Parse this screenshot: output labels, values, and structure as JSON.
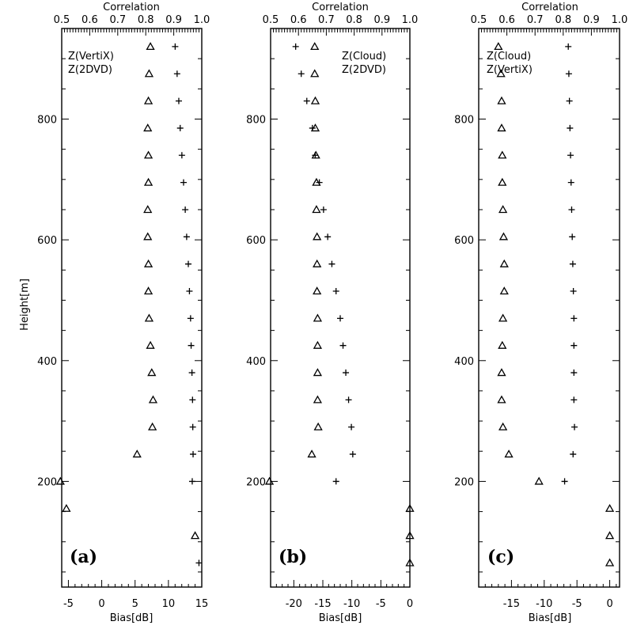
{
  "chart_data": [
    {
      "type": "scatter",
      "panel_label": "(a)",
      "xlabel": "Bias[dB]",
      "x2label": "Correlation",
      "ylabel": "Height[m]",
      "xlim": [
        -6,
        15
      ],
      "x2lim": [
        0.5,
        1.0
      ],
      "ylim": [
        25,
        950
      ],
      "xticks": [
        -5,
        0,
        5,
        10,
        15
      ],
      "xtick_labels": [
        "-5",
        "0",
        "5",
        "10",
        "15"
      ],
      "x2ticks": [
        0.5,
        0.6,
        0.7,
        0.8,
        0.9,
        1.0
      ],
      "x2tick_labels": [
        "0.5",
        "0.6",
        "0.7",
        "0.8",
        "0.9",
        "1.0"
      ],
      "yticks": [
        200,
        400,
        600,
        800
      ],
      "ytick_labels": [
        "200",
        "400",
        "600",
        "800"
      ],
      "legend": [
        "Z(VertiX)",
        "Z(2DVD)"
      ],
      "series": [
        {
          "marker": "triangle",
          "axis": "bias",
          "points": [
            [
              7.3,
              920
            ],
            [
              7.1,
              875
            ],
            [
              7.0,
              830
            ],
            [
              6.9,
              785
            ],
            [
              7.0,
              740
            ],
            [
              7.0,
              695
            ],
            [
              6.9,
              650
            ],
            [
              6.9,
              605
            ],
            [
              7.0,
              560
            ],
            [
              7.0,
              515
            ],
            [
              7.1,
              470
            ],
            [
              7.3,
              425
            ],
            [
              7.5,
              380
            ],
            [
              7.7,
              335
            ],
            [
              7.6,
              290
            ],
            [
              5.3,
              245
            ],
            [
              -6.2,
              200
            ],
            [
              -5.3,
              155
            ],
            [
              14.0,
              110
            ]
          ]
        },
        {
          "marker": "plus",
          "axis": "correlation",
          "points": [
            [
              0.905,
              920
            ],
            [
              0.912,
              875
            ],
            [
              0.918,
              830
            ],
            [
              0.923,
              785
            ],
            [
              0.929,
              740
            ],
            [
              0.935,
              695
            ],
            [
              0.941,
              650
            ],
            [
              0.946,
              605
            ],
            [
              0.952,
              560
            ],
            [
              0.956,
              515
            ],
            [
              0.96,
              470
            ],
            [
              0.962,
              425
            ],
            [
              0.965,
              380
            ],
            [
              0.967,
              335
            ],
            [
              0.968,
              290
            ],
            [
              0.969,
              245
            ],
            [
              0.966,
              200
            ],
            [
              0.99,
              65
            ]
          ]
        }
      ]
    },
    {
      "type": "scatter",
      "panel_label": "(b)",
      "xlabel": "Bias[dB]",
      "x2label": "Correlation",
      "ylabel": "",
      "xlim": [
        -24,
        0
      ],
      "x2lim": [
        0.5,
        1.0
      ],
      "ylim": [
        25,
        950
      ],
      "xticks": [
        -20,
        -15,
        -10,
        -5,
        0
      ],
      "xtick_labels": [
        "-20",
        "-15",
        "-10",
        "-5",
        "0"
      ],
      "x2ticks": [
        0.5,
        0.6,
        0.7,
        0.8,
        0.9,
        1.0
      ],
      "x2tick_labels": [
        "0.5",
        "0.6",
        "0.7",
        "0.8",
        "0.9",
        "1.0"
      ],
      "yticks": [
        200,
        400,
        600,
        800
      ],
      "ytick_labels": [
        "200",
        "400",
        "600",
        "800"
      ],
      "legend": [
        "Z(Cloud)",
        "Z(2DVD)"
      ],
      "series": [
        {
          "marker": "triangle",
          "axis": "bias",
          "points": [
            [
              -16.4,
              920
            ],
            [
              -16.4,
              875
            ],
            [
              -16.3,
              830
            ],
            [
              -16.3,
              785
            ],
            [
              -16.2,
              740
            ],
            [
              -16.1,
              695
            ],
            [
              -16.1,
              650
            ],
            [
              -16.0,
              605
            ],
            [
              -16.0,
              560
            ],
            [
              -16.0,
              515
            ],
            [
              -15.9,
              470
            ],
            [
              -15.9,
              425
            ],
            [
              -15.9,
              380
            ],
            [
              -15.9,
              335
            ],
            [
              -15.8,
              290
            ],
            [
              -16.9,
              245
            ],
            [
              -24.2,
              200
            ],
            [
              0,
              155
            ],
            [
              0,
              110
            ],
            [
              0,
              65
            ]
          ]
        },
        {
          "marker": "plus",
          "axis": "correlation",
          "points": [
            [
              0.59,
              920
            ],
            [
              0.61,
              875
            ],
            [
              0.63,
              830
            ],
            [
              0.65,
              785
            ],
            [
              0.66,
              740
            ],
            [
              0.675,
              695
            ],
            [
              0.69,
              650
            ],
            [
              0.705,
              605
            ],
            [
              0.72,
              560
            ],
            [
              0.735,
              515
            ],
            [
              0.75,
              470
            ],
            [
              0.76,
              425
            ],
            [
              0.77,
              380
            ],
            [
              0.78,
              335
            ],
            [
              0.79,
              290
            ],
            [
              0.795,
              245
            ],
            [
              0.735,
              200
            ]
          ]
        }
      ]
    },
    {
      "type": "scatter",
      "panel_label": "(c)",
      "xlabel": "Bias[dB]",
      "x2label": "Correlation",
      "ylabel": "",
      "xlim": [
        -20,
        1.5
      ],
      "x2lim": [
        0.5,
        1.0
      ],
      "ylim": [
        25,
        950
      ],
      "xticks": [
        -15,
        -10,
        -5,
        0
      ],
      "xtick_labels": [
        "-15",
        "-10",
        "-5",
        "0"
      ],
      "x2ticks": [
        0.5,
        0.6,
        0.7,
        0.8,
        0.9,
        1.0
      ],
      "x2tick_labels": [
        "0.5",
        "0.6",
        "0.7",
        "0.8",
        "0.9",
        "1.0"
      ],
      "yticks": [
        200,
        400,
        600,
        800
      ],
      "ytick_labels": [
        "200",
        "400",
        "600",
        "800"
      ],
      "legend": [
        "Z(Cloud)",
        "Z(VertiX)"
      ],
      "series": [
        {
          "marker": "triangle",
          "axis": "bias",
          "points": [
            [
              -17.0,
              920
            ],
            [
              -16.6,
              875
            ],
            [
              -16.5,
              830
            ],
            [
              -16.5,
              785
            ],
            [
              -16.4,
              740
            ],
            [
              -16.4,
              695
            ],
            [
              -16.3,
              650
            ],
            [
              -16.2,
              605
            ],
            [
              -16.1,
              560
            ],
            [
              -16.1,
              515
            ],
            [
              -16.3,
              470
            ],
            [
              -16.4,
              425
            ],
            [
              -16.5,
              380
            ],
            [
              -16.5,
              335
            ],
            [
              -16.3,
              290
            ],
            [
              -15.4,
              245
            ],
            [
              -10.8,
              200
            ],
            [
              0,
              155
            ],
            [
              0,
              110
            ],
            [
              0,
              65
            ]
          ]
        },
        {
          "marker": "plus",
          "axis": "correlation",
          "points": [
            [
              0.818,
              920
            ],
            [
              0.82,
              875
            ],
            [
              0.822,
              830
            ],
            [
              0.824,
              785
            ],
            [
              0.826,
              740
            ],
            [
              0.828,
              695
            ],
            [
              0.83,
              650
            ],
            [
              0.832,
              605
            ],
            [
              0.834,
              560
            ],
            [
              0.836,
              515
            ],
            [
              0.838,
              470
            ],
            [
              0.838,
              425
            ],
            [
              0.838,
              380
            ],
            [
              0.838,
              335
            ],
            [
              0.84,
              290
            ],
            [
              0.835,
              245
            ],
            [
              0.805,
              200
            ]
          ]
        }
      ]
    }
  ]
}
